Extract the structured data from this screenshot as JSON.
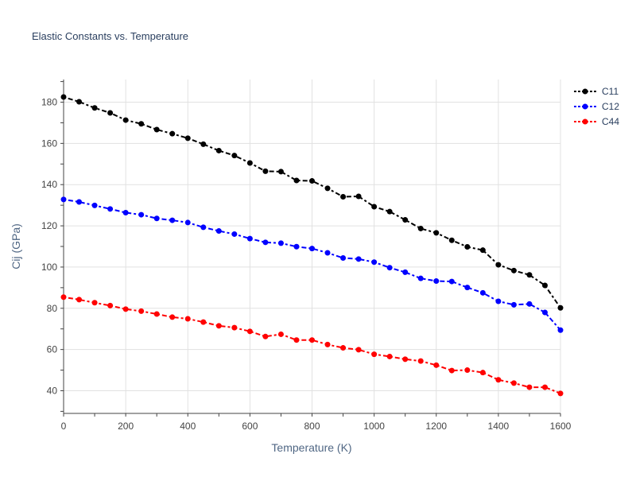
{
  "chart_data": {
    "type": "line",
    "title": "Elastic Constants vs. Temperature",
    "xlabel": "Temperature (K)",
    "ylabel": "Cij (GPa)",
    "xlim": [
      0,
      1600
    ],
    "ylim": [
      29,
      191
    ],
    "x_ticks": [
      0,
      200,
      400,
      600,
      800,
      1000,
      1200,
      1400,
      1600
    ],
    "y_ticks": [
      40,
      60,
      80,
      100,
      120,
      140,
      160,
      180
    ],
    "grid": true,
    "legend_position": "top-right",
    "x": [
      0,
      50,
      100,
      150,
      200,
      250,
      300,
      350,
      400,
      450,
      500,
      550,
      600,
      650,
      700,
      750,
      800,
      850,
      900,
      950,
      1000,
      1050,
      1100,
      1150,
      1200,
      1250,
      1300,
      1350,
      1400,
      1450,
      1500,
      1550,
      1600
    ],
    "series": [
      {
        "name": "C11",
        "color": "#000000",
        "values": [
          182.5,
          180.2,
          177.2,
          174.8,
          171.3,
          169.5,
          166.7,
          164.7,
          162.5,
          159.6,
          156.5,
          154.1,
          150.5,
          146.5,
          146.3,
          142.0,
          141.8,
          138.2,
          134.1,
          134.3,
          129.3,
          126.9,
          122.9,
          118.7,
          116.6,
          113.0,
          109.8,
          108.2,
          101.1,
          98.3,
          96.2,
          91.1,
          80.2
        ]
      },
      {
        "name": "C12",
        "color": "#0000ff",
        "values": [
          132.8,
          131.6,
          129.9,
          128.2,
          126.4,
          125.4,
          123.6,
          122.7,
          121.6,
          119.3,
          117.5,
          116.0,
          113.8,
          112.0,
          111.6,
          109.9,
          109.0,
          106.9,
          104.4,
          103.9,
          102.4,
          99.7,
          97.5,
          94.5,
          93.2,
          93.0,
          90.1,
          87.5,
          83.4,
          81.7,
          82.1,
          78.0,
          69.4
        ]
      },
      {
        "name": "C44",
        "color": "#ff0000",
        "values": [
          85.4,
          84.2,
          82.7,
          81.3,
          79.6,
          78.6,
          77.2,
          75.7,
          74.9,
          73.3,
          71.5,
          70.6,
          68.8,
          66.3,
          67.4,
          64.6,
          64.6,
          62.4,
          60.8,
          59.9,
          57.7,
          56.6,
          55.3,
          54.4,
          52.4,
          49.8,
          50.0,
          48.8,
          45.3,
          43.7,
          41.7,
          41.7,
          38.7
        ]
      }
    ]
  }
}
